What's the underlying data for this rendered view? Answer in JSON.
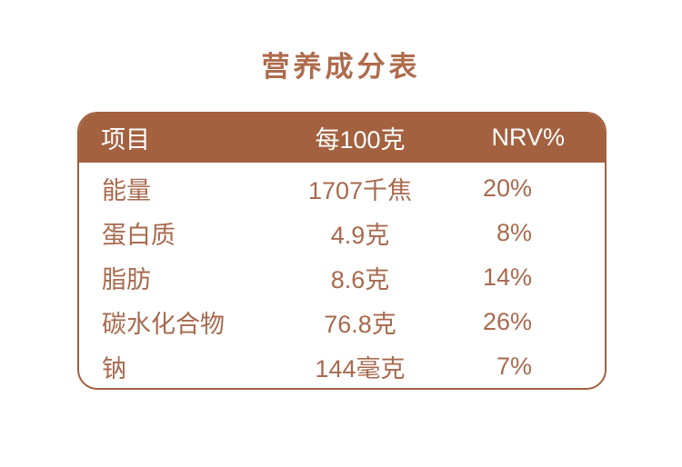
{
  "title": "营养成分表",
  "colors": {
    "primary_brown": "#A4613F",
    "text_brown": "#A76A4F",
    "title_brown": "#AE6C4D",
    "header_text": "#FFFFFF",
    "page_background": "#FFFFFF"
  },
  "table": {
    "columns": [
      "项目",
      "每100克",
      "NRV%"
    ],
    "rows": [
      {
        "item": "能量",
        "per100g": "1707千焦",
        "nrv": "20%"
      },
      {
        "item": "蛋白质",
        "per100g": "4.9克",
        "nrv": "8%"
      },
      {
        "item": "脂肪",
        "per100g": "8.6克",
        "nrv": "14%"
      },
      {
        "item": "碳水化合物",
        "per100g": "76.8克",
        "nrv": "26%"
      },
      {
        "item": "钠",
        "per100g": "144毫克",
        "nrv": "7%"
      }
    ]
  }
}
